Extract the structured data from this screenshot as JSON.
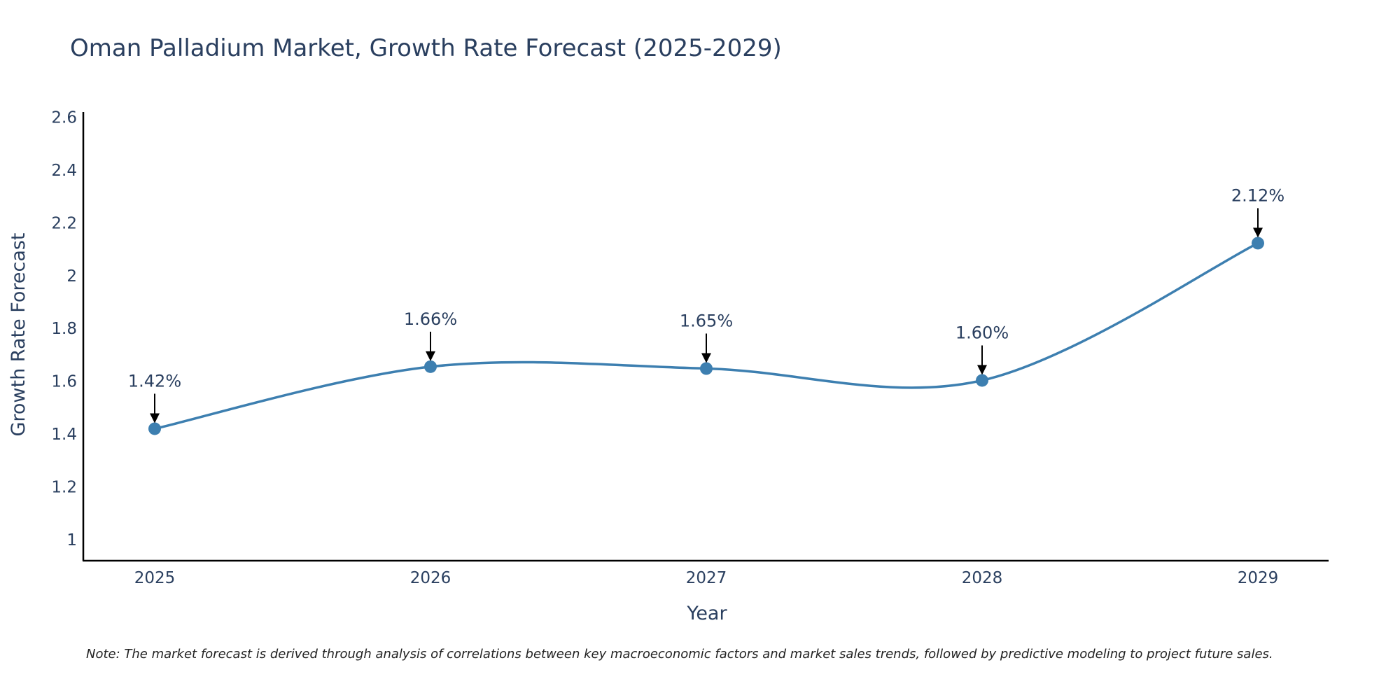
{
  "chart_data": {
    "type": "line",
    "title": "Oman Palladium Market, Growth Rate Forecast (2025-2029)",
    "xlabel": "Year",
    "ylabel": "Growth Rate Forecast",
    "categories": [
      "2025",
      "2026",
      "2027",
      "2028",
      "2029"
    ],
    "values": [
      1.42,
      1.655,
      1.648,
      1.603,
      2.123
    ],
    "data_labels": [
      "1.42%",
      "1.66%",
      "1.65%",
      "1.60%",
      "2.12%"
    ],
    "y_ticks": [
      1,
      1.2,
      1.4,
      1.6,
      1.8,
      2,
      2.2,
      2.4,
      2.6
    ],
    "y_tick_labels": [
      "1",
      "1.2",
      "1.4",
      "1.6",
      "1.8",
      "2",
      "2.2",
      "2.4",
      "2.6"
    ],
    "ylim": [
      0.92,
      2.62
    ],
    "grid": false,
    "line_shape": "spline",
    "colors": {
      "line": "#3d7fb0",
      "marker": "#3d7fb0",
      "text": "#2a3f5f",
      "axis": "#000000",
      "arrow": "#000000"
    }
  },
  "note": "Note: The market forecast is derived through analysis of correlations between key macroeconomic factors and market sales trends, followed by predictive modeling to project future sales."
}
